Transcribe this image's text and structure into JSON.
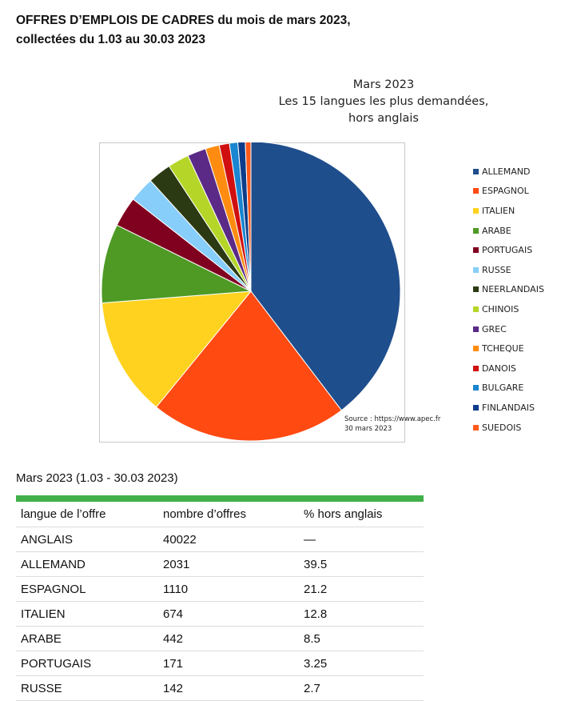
{
  "page": {
    "title_line1": "OFFRES D’EMPLOIS DE CADRES du mois de mars 2023,",
    "title_line2": "collectées du 1.03 au 30.03 2023"
  },
  "chart_data": {
    "type": "pie",
    "title_lines": [
      "Mars 2023",
      "Les 15 langues les plus demandées,",
      "hors anglais"
    ],
    "source_lines": [
      "Source : https://www.apec.fr",
      "30 mars 2023"
    ],
    "legend_position": "right",
    "categories": [
      "ALLEMAND",
      "ESPAGNOL",
      "ITALIEN",
      "ARABE",
      "PORTUGAIS",
      "RUSSE",
      "NEERLANDAIS",
      "CHINOIS",
      "GREC",
      "TCHEQUE",
      "DANOIS",
      "BULGARE",
      "FINLANDAIS",
      "SUEDOIS"
    ],
    "values": [
      39.5,
      21.2,
      12.8,
      8.5,
      3.25,
      2.7,
      2.5,
      2.3,
      2.0,
      1.5,
      1.1,
      0.9,
      0.8,
      0.6
    ],
    "colors": [
      "#1f4e8c",
      "#ff4a12",
      "#ffd21f",
      "#4e9a24",
      "#800020",
      "#87cefa",
      "#2b3a12",
      "#b5d628",
      "#5b2a86",
      "#ff8c10",
      "#d01010",
      "#1a85d0",
      "#0d3d8a",
      "#ff5a1a"
    ]
  },
  "table": {
    "caption": "Mars 2023 (1.03 - 30.03 2023)",
    "headers": [
      "langue de l’offre",
      "nombre d’offres",
      "% hors anglais"
    ],
    "rows": [
      [
        "ANGLAIS",
        "40022",
        "—"
      ],
      [
        "ALLEMAND",
        "2031",
        "39.5"
      ],
      [
        "ESPAGNOL",
        "1110",
        "21.2"
      ],
      [
        "ITALIEN",
        "674",
        "12.8"
      ],
      [
        "ARABE",
        "442",
        "8.5"
      ],
      [
        "PORTUGAIS",
        "171",
        "3.25"
      ],
      [
        "RUSSE",
        "142",
        "2.7"
      ]
    ]
  }
}
